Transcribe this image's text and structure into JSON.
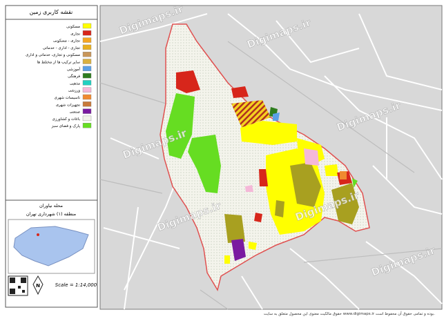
{
  "legend": {
    "title": "نقشه کاربری زمین",
    "items": [
      {
        "label": "مسکونی",
        "color": "#ffff00"
      },
      {
        "label": "تجاری",
        "color": "#d7261b"
      },
      {
        "label": "تجاری - مسکونی",
        "color": "#f5a623"
      },
      {
        "label": "تجاری - اداری - خدماتی",
        "color": "#e8b020"
      },
      {
        "label": "مسکونی و تجاری، خدماتی و اداری",
        "color": "#c8965a"
      },
      {
        "label": "سایر ترکیب ها از مختلط ها",
        "color": "#d9b040"
      },
      {
        "label": "آموزشی",
        "color": "#5aa0e6"
      },
      {
        "label": "فرهنگی",
        "color": "#2e7d1e"
      },
      {
        "label": "مذهبی",
        "color": "#20d0c0"
      },
      {
        "label": "ورزشی",
        "color": "#f5b8d8"
      },
      {
        "label": "تاسیسات شهری",
        "color": "#f08a30"
      },
      {
        "label": "تجهیزات شهری",
        "color": "#c87a3a"
      },
      {
        "label": "صنعتی",
        "color": "#7a1aa0"
      },
      {
        "label": "باغات و کشاورزی",
        "color": "#f2f2ea"
      },
      {
        "label": "پارک و فضای سبز",
        "color": "#66dd22"
      }
    ]
  },
  "location": {
    "neighborhood": "محله نیاوران",
    "district": "منطقه (۱) شهرداری تهران",
    "scale": "Scale = 1:14,000"
  },
  "watermark": "Digimaps.ir",
  "footer": "حقوق مالکیت معنوی این محصول متعلق به سایت www.digimaps.ir بوده و تمامی حقوق آن محفوظ است."
}
